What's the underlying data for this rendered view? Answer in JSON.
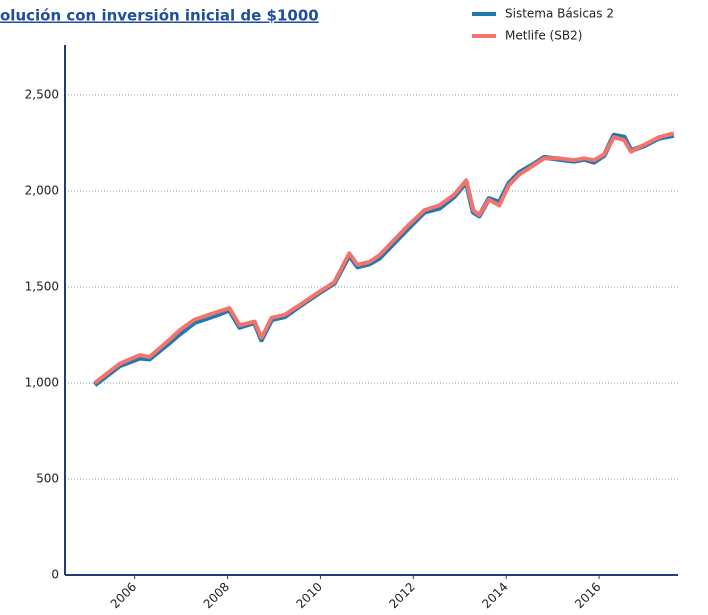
{
  "chart_data": {
    "type": "line",
    "title": "olución con inversión inicial de $1000",
    "legend": "upper right",
    "grid": true,
    "xlim": [
      2004.5,
      2017.7
    ],
    "xticks": [
      2006,
      2008,
      2010,
      2012,
      2014,
      2016
    ],
    "ylim": [
      0,
      2760
    ],
    "yticks": [
      0,
      500,
      {
        "value": 1000,
        "label": "1,000"
      },
      {
        "value": 1500,
        "label": "1,500"
      },
      {
        "value": 2000,
        "label": "2,000"
      },
      {
        "value": 2500,
        "label": "2,500"
      }
    ],
    "x": [
      2005.14,
      2005.68,
      2006.11,
      2006.32,
      2006.75,
      2006.97,
      2007.29,
      2007.72,
      2008.04,
      2008.26,
      2008.58,
      2008.73,
      2008.95,
      2009.23,
      2009.55,
      2009.98,
      2010.3,
      2010.62,
      2010.8,
      2011.05,
      2011.27,
      2011.59,
      2011.91,
      2012.24,
      2012.56,
      2012.88,
      2013.14,
      2013.29,
      2013.42,
      2013.63,
      2013.85,
      2014.06,
      2014.28,
      2014.6,
      2014.82,
      2015.14,
      2015.46,
      2015.68,
      2015.89,
      2016.11,
      2016.32,
      2016.54,
      2016.69,
      2016.97,
      2017.29,
      2017.61
    ],
    "series": [
      {
        "name": "Sistema Básicas 2",
        "color": "#1f77b4",
        "values": [
          990,
          1090,
          1130,
          1125,
          1210,
          1255,
          1315,
          1350,
          1380,
          1290,
          1315,
          1225,
          1330,
          1345,
          1400,
          1470,
          1520,
          1665,
          1605,
          1620,
          1650,
          1730,
          1810,
          1890,
          1910,
          1970,
          2045,
          1890,
          1870,
          1960,
          1940,
          2040,
          2095,
          2140,
          2175,
          2165,
          2155,
          2165,
          2150,
          2185,
          2290,
          2280,
          2210,
          2235,
          2275,
          2290
        ]
      },
      {
        "name": "Metlife (SB2)",
        "color": "#f4736a",
        "values": [
          1000,
          1100,
          1145,
          1135,
          1225,
          1275,
          1330,
          1365,
          1390,
          1300,
          1320,
          1235,
          1340,
          1355,
          1405,
          1475,
          1525,
          1675,
          1615,
          1630,
          1665,
          1745,
          1825,
          1900,
          1925,
          1980,
          2055,
          1900,
          1875,
          1955,
          1925,
          2030,
          2085,
          2135,
          2170,
          2170,
          2160,
          2170,
          2160,
          2190,
          2280,
          2265,
          2205,
          2240,
          2280,
          2300
        ]
      }
    ]
  }
}
